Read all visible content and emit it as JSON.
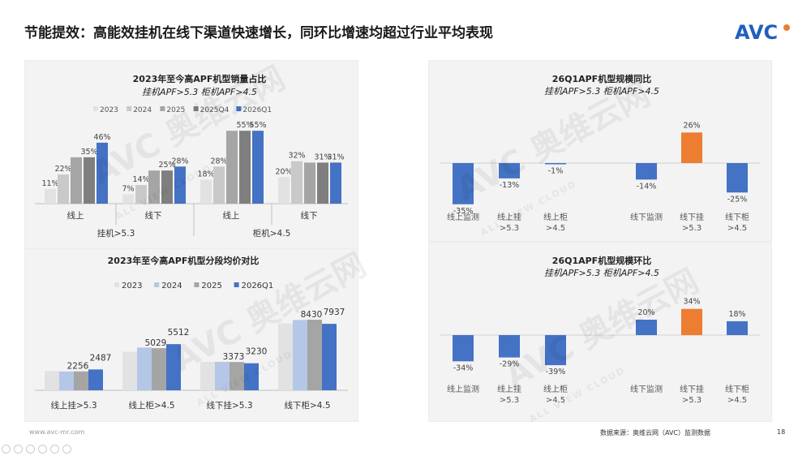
{
  "header": {
    "title": "节能提效：高能效挂机在线下渠道快速增长，同环比增速均超过行业平均表现",
    "logo_text": "AVC"
  },
  "footer": {
    "website": "www.avc-mr.com",
    "source": "数据来源：奥维云网（AVC）监测数据",
    "page": "18"
  },
  "watermark": {
    "brand": "AVC 奥维云网",
    "sub": "ALL VIEW CLOUD"
  },
  "colors": {
    "c2023": "#e2e2e2",
    "c2024": "#c9c9c9",
    "c2024_light_blue": "#b4c7e7",
    "c2025": "#a5a5a5",
    "c2025Q4": "#7f7f7f",
    "c2026Q1": "#4472c4",
    "negative_blue": "#4472c4",
    "highlight_orange": "#ed7d31"
  },
  "chart_data": [
    {
      "type": "bar",
      "title": "2023年至今高APF机型销量占比",
      "subtitle": "挂机APF>5.3 柜机APF>4.5",
      "categories": [
        "线上",
        "线下",
        "线上",
        "线下"
      ],
      "groups": [
        {
          "label": "挂机>5.3",
          "categories": [
            "线上",
            "线下"
          ]
        },
        {
          "label": "柜机>4.5",
          "categories": [
            "线上",
            "线下"
          ]
        }
      ],
      "series": [
        {
          "name": "2023",
          "color": "#e2e2e2",
          "values": [
            11,
            7,
            18,
            20
          ]
        },
        {
          "name": "2024",
          "color": "#c9c9c9",
          "values": [
            22,
            14,
            28,
            32
          ]
        },
        {
          "name": "2025",
          "color": "#a5a5a5",
          "values": [
            35,
            25,
            55,
            31
          ]
        },
        {
          "name": "2025Q4",
          "color": "#7f7f7f",
          "values": [
            35,
            25,
            55,
            31
          ]
        },
        {
          "name": "2026Q1",
          "color": "#4472c4",
          "values": [
            46,
            28,
            55,
            31
          ]
        }
      ],
      "data_labels": [
        [
          "11%",
          "22%",
          "",
          "35%",
          "46%"
        ],
        [
          "7%",
          "14%",
          "",
          "25%",
          "28%"
        ],
        [
          "18%",
          "28%",
          "",
          "55%",
          "55%"
        ],
        [
          "20%",
          "32%",
          "",
          "31%",
          "31%"
        ]
      ],
      "ylim": [
        0,
        60
      ],
      "legend": "top",
      "grid": false
    },
    {
      "type": "bar",
      "title": "2023年至今高APF机型分段均价对比",
      "categories": [
        "线上挂>5.3",
        "线上柜>4.5",
        "线下挂>5.3",
        "线下柜>4.5"
      ],
      "series": [
        {
          "name": "2023",
          "color": "#e2e2e2",
          "values": [
            2300,
            4600,
            3400,
            8000
          ]
        },
        {
          "name": "2024",
          "color": "#b4c7e7",
          "values": [
            2250,
            5100,
            3400,
            8400
          ]
        },
        {
          "name": "2025",
          "color": "#a5a5a5",
          "values": [
            2256,
            5029,
            3373,
            8430
          ]
        },
        {
          "name": "2026Q1",
          "color": "#4472c4",
          "values": [
            2487,
            5512,
            3230,
            7937
          ]
        }
      ],
      "data_labels": [
        [
          "",
          "",
          "2256",
          "2487"
        ],
        [
          "",
          "",
          "5029",
          "5512"
        ],
        [
          "",
          "",
          "3373",
          "3230"
        ],
        [
          "",
          "",
          "8430",
          "7937"
        ]
      ],
      "ylim": [
        0,
        9500
      ],
      "legend": "top",
      "grid": false
    },
    {
      "type": "bar",
      "title": "26Q1APF机型规模同比",
      "subtitle": "挂机APF>5.3 柜机APF>4.5",
      "categories": [
        "线上监测",
        "线上挂>5.3",
        "线上柜>4.5",
        "线下监测",
        "线下挂>5.3",
        "线下柜>4.5"
      ],
      "category_lines": [
        [
          "线上监测"
        ],
        [
          "线上挂",
          ">5.3"
        ],
        [
          "线上柜",
          ">4.5"
        ],
        [
          "线下监测"
        ],
        [
          "线下挂",
          ">5.3"
        ],
        [
          "线下柜",
          ">4.5"
        ]
      ],
      "values": [
        -35,
        -13,
        -1,
        -14,
        26,
        -25
      ],
      "labels": [
        "-35%",
        "-13%",
        "-1%",
        "-14%",
        "26%",
        "-25%"
      ],
      "highlight_index": 4,
      "ylim": [
        -40,
        30
      ]
    },
    {
      "type": "bar",
      "title": "26Q1APF机型规模环比",
      "subtitle": "挂机APF>5.3 柜机APF>4.5",
      "categories": [
        "线上监测",
        "线上挂>5.3",
        "线上柜>4.5",
        "线下监测",
        "线下挂>5.3",
        "线下柜>4.5"
      ],
      "category_lines": [
        [
          "线上监测"
        ],
        [
          "线上挂",
          ">5.3"
        ],
        [
          "线上柜",
          ">4.5"
        ],
        [
          "线下监测"
        ],
        [
          "线下挂",
          ">5.3"
        ],
        [
          "线下柜",
          ">4.5"
        ]
      ],
      "values": [
        -34,
        -29,
        -39,
        20,
        34,
        18
      ],
      "labels": [
        "-34%",
        "-29%",
        "-39%",
        "20%",
        "34%",
        "18%"
      ],
      "highlight_index": 4,
      "ylim": [
        -45,
        40
      ]
    }
  ]
}
